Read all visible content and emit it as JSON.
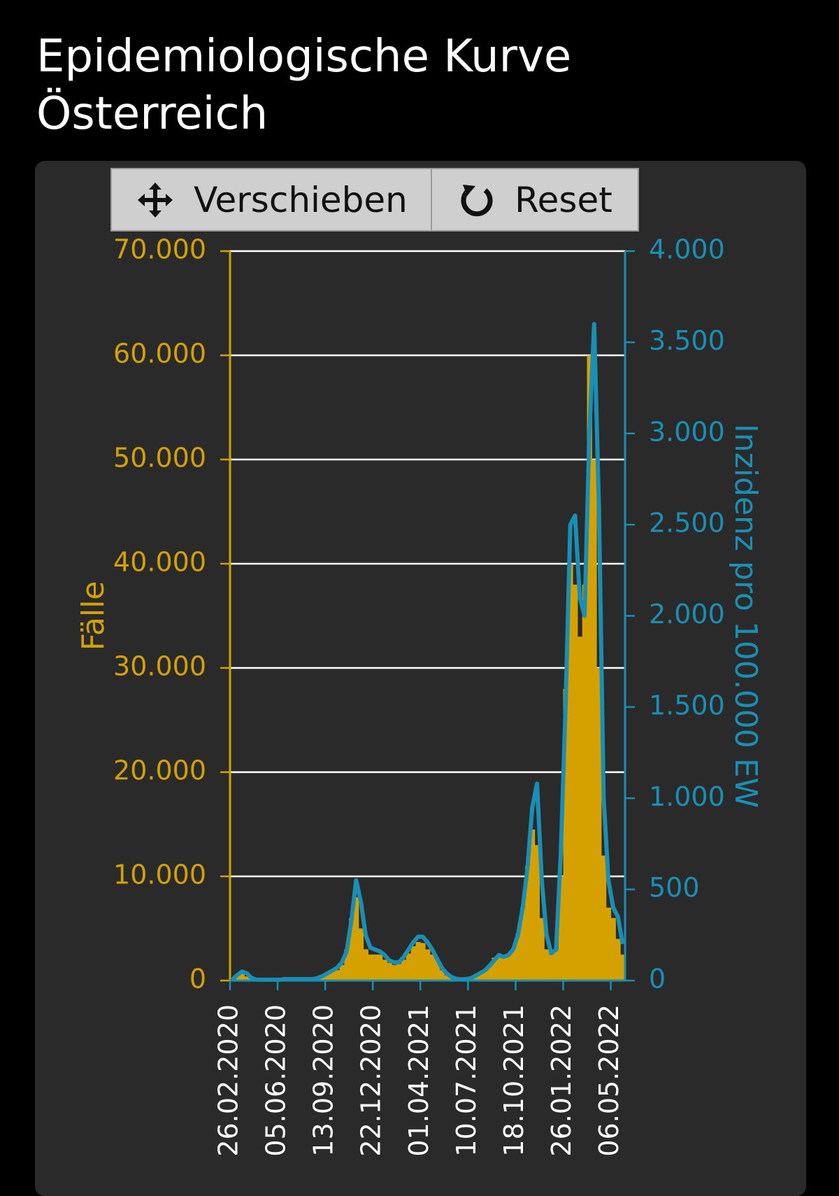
{
  "header": {
    "title": "Epidemiologische Kurve Österreich"
  },
  "toolbar": {
    "pan": "Verschieben",
    "reset": "Reset"
  },
  "chart_data": {
    "type": "bar-line",
    "categories": [
      "26.02.2020",
      null,
      null,
      null,
      null,
      null,
      null,
      null,
      null,
      null,
      "05.06.2020",
      null,
      null,
      null,
      null,
      null,
      null,
      null,
      null,
      null,
      "13.09.2020",
      null,
      null,
      null,
      null,
      null,
      null,
      null,
      null,
      null,
      "22.12.2020",
      null,
      null,
      null,
      null,
      null,
      null,
      null,
      null,
      null,
      "01.04.2021",
      null,
      null,
      null,
      null,
      null,
      null,
      null,
      null,
      null,
      "10.07.2021",
      null,
      null,
      null,
      null,
      null,
      null,
      null,
      null,
      null,
      "18.10.2021",
      null,
      null,
      null,
      null,
      null,
      null,
      null,
      null,
      null,
      "26.01.2022",
      null,
      null,
      null,
      null,
      null,
      null,
      null,
      null,
      null,
      "06.05.2022",
      null,
      null
    ],
    "y_label": "Fälle",
    "y2_label": "Inzidenz pro 100.000 EW",
    "ylim": [
      0,
      70000
    ],
    "yticks": [
      0,
      {
        "value": 10000,
        "label": "10.000"
      },
      {
        "value": 20000,
        "label": "20.000"
      },
      {
        "value": 30000,
        "label": "30.000"
      },
      {
        "value": 40000,
        "label": "40.000"
      },
      {
        "value": 50000,
        "label": "50.000"
      },
      {
        "value": 60000,
        "label": "60.000"
      },
      {
        "value": 70000,
        "label": "70.000"
      }
    ],
    "y2lim": [
      0,
      4000
    ],
    "y2ticks": [
      0,
      500,
      {
        "value": 1000,
        "label": "1.000"
      },
      {
        "value": 1500,
        "label": "1.500"
      },
      {
        "value": 2000,
        "label": "2.000"
      },
      {
        "value": 2500,
        "label": "2.500"
      },
      {
        "value": 3000,
        "label": "3.000"
      },
      {
        "value": 3500,
        "label": "3.500"
      },
      {
        "value": 4000,
        "label": "4.000"
      }
    ],
    "grid": true,
    "series": [
      {
        "type": "bar",
        "color": "#d4a100",
        "values": [
          0,
          600,
          800,
          400,
          200,
          100,
          100,
          100,
          100,
          100,
          100,
          150,
          150,
          150,
          150,
          150,
          150,
          150,
          300,
          400,
          800,
          900,
          1000,
          1500,
          3000,
          6000,
          8000,
          5000,
          3000,
          2500,
          2500,
          2500,
          2000,
          1700,
          1500,
          1600,
          2000,
          2600,
          3300,
          3700,
          3600,
          3000,
          2500,
          2000,
          1000,
          500,
          300,
          150,
          100,
          120,
          200,
          400,
          700,
          1000,
          1500,
          2200,
          2500,
          2300,
          2500,
          3000,
          4500,
          7000,
          11000,
          14500,
          13000,
          6000,
          3000,
          2500,
          3000,
          10000,
          28000,
          40000,
          38000,
          33000,
          38000,
          60000,
          50000,
          30000,
          12000,
          7000,
          6000,
          4000,
          2500
        ]
      },
      {
        "type": "line",
        "axis": "y2",
        "color": "#1a8fb5",
        "values": [
          5,
          30,
          50,
          40,
          15,
          5,
          5,
          5,
          5,
          5,
          5,
          8,
          8,
          8,
          8,
          8,
          8,
          8,
          15,
          25,
          40,
          55,
          70,
          100,
          160,
          330,
          550,
          430,
          250,
          180,
          170,
          160,
          140,
          110,
          100,
          100,
          130,
          170,
          210,
          240,
          240,
          210,
          170,
          120,
          70,
          40,
          20,
          10,
          7,
          8,
          12,
          25,
          40,
          55,
          80,
          110,
          140,
          130,
          140,
          170,
          250,
          400,
          620,
          950,
          1080,
          550,
          250,
          150,
          170,
          700,
          1500,
          2500,
          2550,
          2100,
          2000,
          3000,
          3600,
          2600,
          1000,
          550,
          400,
          350,
          200
        ]
      }
    ]
  }
}
